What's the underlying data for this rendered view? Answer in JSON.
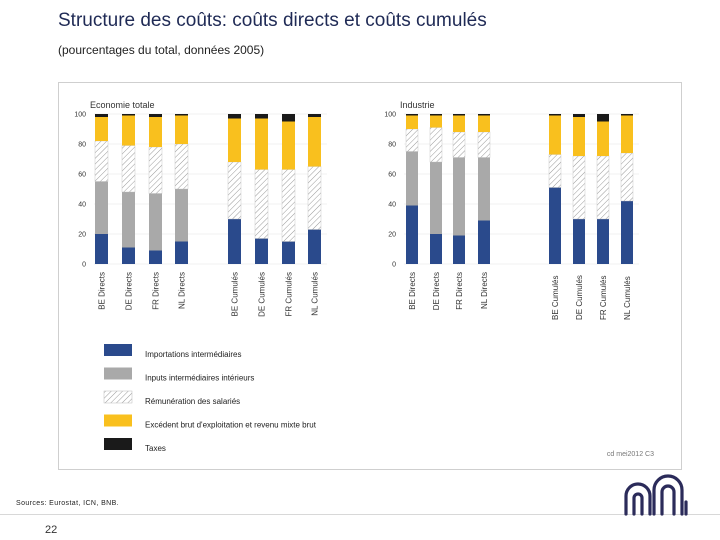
{
  "title": "Structure des coûts: coûts directs et coûts cumulés",
  "subtitle": "(pourcentages du total, données 2005)",
  "sources": "Sources: Eurostat, ICN, BNB.",
  "page_number": "22",
  "chart_ref": "cd mei2012 C3",
  "colors": {
    "importations": "#2a4a8c",
    "inputs_interieurs": "#a9a9a9",
    "remuneration": "#ffffff",
    "excedent": "#f9c01e",
    "taxes": "#1a1a1a",
    "title": "#1f2a55"
  },
  "legend": [
    {
      "key": "importations",
      "label": "Importations intermédiaires",
      "pattern": false
    },
    {
      "key": "inputs_interieurs",
      "label": "Inputs intermédiaires intérieurs",
      "pattern": false
    },
    {
      "key": "remuneration",
      "label": "Rémunération des salariés",
      "pattern": true
    },
    {
      "key": "excedent",
      "label": "Excédent brut d'exploitation et revenu mixte brut",
      "pattern": false
    },
    {
      "key": "taxes",
      "label": "Taxes",
      "pattern": false
    }
  ],
  "chart_data": [
    {
      "type": "bar",
      "stacked": true,
      "title": "Economie totale",
      "ylim": [
        0,
        100
      ],
      "yticks": [
        0,
        20,
        40,
        60,
        80,
        100
      ],
      "categories": [
        "BE Directs",
        "DE Directs",
        "FR Directs",
        "NL Directs",
        "BE Cumulés",
        "DE Cumulés",
        "FR Cumulés",
        "NL Cumulés"
      ],
      "series": [
        {
          "name": "Importations intermédiaires",
          "values": [
            20,
            11,
            9,
            15,
            30,
            17,
            15,
            23
          ]
        },
        {
          "name": "Inputs intermédiaires intérieurs",
          "values": [
            35,
            37,
            38,
            35,
            0,
            0,
            0,
            0
          ]
        },
        {
          "name": "Rémunération des salariés",
          "values": [
            27,
            31,
            31,
            30,
            38,
            46,
            48,
            42
          ]
        },
        {
          "name": "Excédent brut d'exploitation et revenu mixte brut",
          "values": [
            16,
            20,
            20,
            19,
            29,
            34,
            32,
            33
          ]
        },
        {
          "name": "Taxes",
          "values": [
            2,
            1,
            2,
            1,
            3,
            3,
            5,
            2
          ]
        }
      ]
    },
    {
      "type": "bar",
      "stacked": true,
      "title": "Industrie",
      "ylim": [
        0,
        100
      ],
      "yticks": [
        0,
        20,
        40,
        60,
        80,
        100
      ],
      "categories": [
        "BE Directs",
        "DE Directs",
        "FR Directs",
        "NL Directs",
        "BE Cumulés",
        "DE Cumulés",
        "FR Cumulés",
        "NL Cumulés"
      ],
      "series": [
        {
          "name": "Importations intermédiaires",
          "values": [
            39,
            20,
            19,
            29,
            51,
            30,
            30,
            42
          ]
        },
        {
          "name": "Inputs intermédiaires intérieurs",
          "values": [
            36,
            48,
            52,
            42,
            0,
            0,
            0,
            0
          ]
        },
        {
          "name": "Rémunération des salariés",
          "values": [
            15,
            23,
            17,
            17,
            22,
            42,
            42,
            32
          ]
        },
        {
          "name": "Excédent brut d'exploitation et revenu mixte brut",
          "values": [
            9,
            8,
            11,
            11,
            26,
            26,
            23,
            25
          ]
        },
        {
          "name": "Taxes",
          "values": [
            1,
            1,
            1,
            1,
            1,
            2,
            5,
            1
          ]
        }
      ]
    }
  ]
}
